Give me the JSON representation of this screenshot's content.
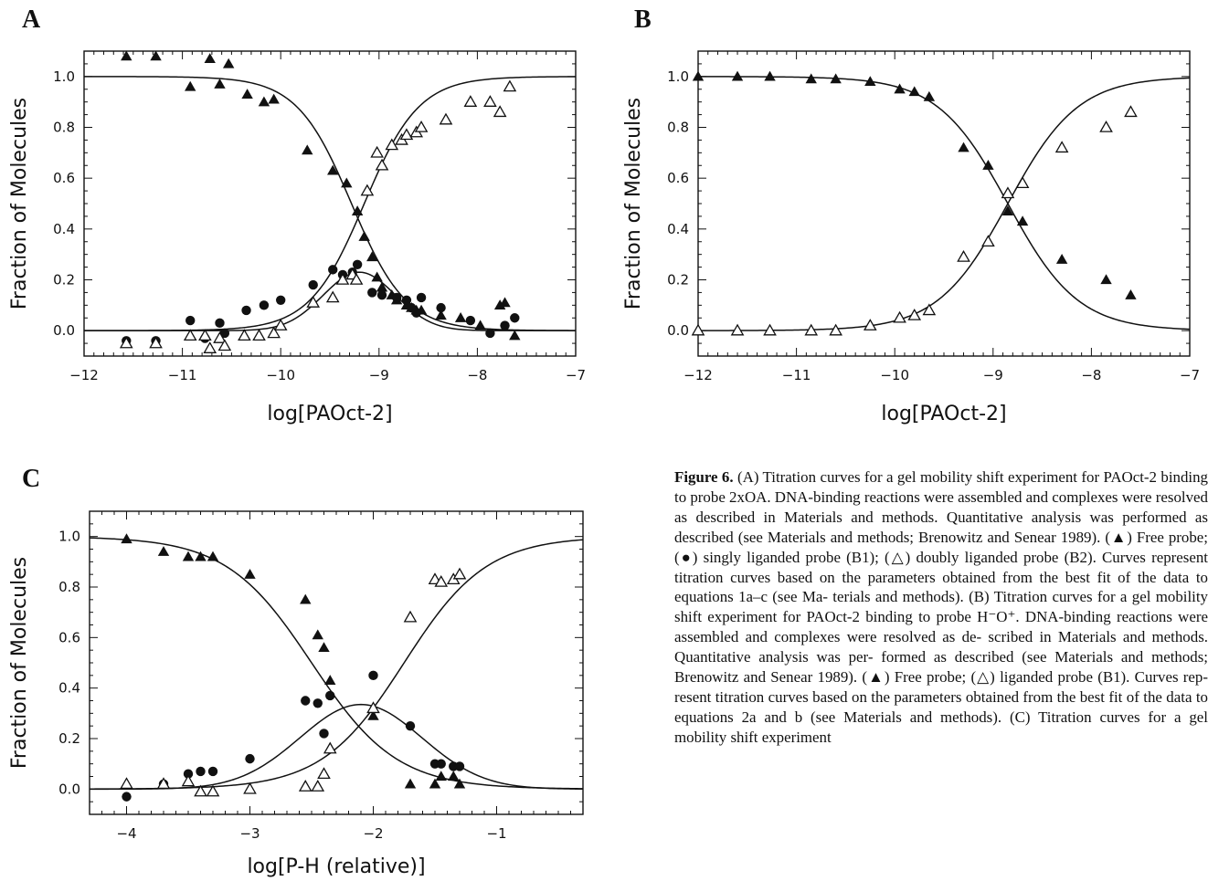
{
  "panels": {
    "a": "A",
    "b": "B",
    "c": "C"
  },
  "chart_data": [
    {
      "type": "scatter",
      "panel": "A",
      "xlabel": "log[PAOct-2]",
      "ylabel": "Fraction of Molecules",
      "xlim": [
        -12,
        -7
      ],
      "ylim": [
        -0.1,
        1.1
      ],
      "xticks": [
        -12,
        -11,
        -10,
        -9,
        -8,
        -7
      ],
      "yticks": [
        0.0,
        0.2,
        0.4,
        0.6,
        0.8,
        1.0
      ],
      "xtick_labels": [
        "−12",
        "−11",
        "−10",
        "−9",
        "−8",
        "−7"
      ],
      "ytick_labels": [
        "0.0",
        "0.2",
        "0.4",
        "0.6",
        "0.8",
        "1.0"
      ],
      "series": [
        {
          "marker": "filled-triangle",
          "x": [
            -11.57,
            -11.27,
            -10.92,
            -10.72,
            -10.62,
            -10.53,
            -10.34,
            -10.17,
            -10.07,
            -9.73,
            -9.47,
            -9.33,
            -9.22,
            -9.15,
            -9.07,
            -9.02,
            -8.97,
            -8.87,
            -8.82,
            -8.72,
            -8.67,
            -8.62,
            -8.57,
            -8.37,
            -8.17,
            -7.97,
            -7.77,
            -7.72,
            -7.62
          ],
          "y": [
            1.08,
            1.08,
            0.96,
            1.07,
            0.97,
            1.05,
            0.93,
            0.9,
            0.91,
            0.71,
            0.63,
            0.58,
            0.47,
            0.37,
            0.29,
            0.21,
            0.17,
            0.14,
            0.12,
            0.1,
            0.09,
            0.08,
            0.08,
            0.06,
            0.05,
            0.02,
            0.1,
            0.11,
            -0.02
          ]
        },
        {
          "marker": "filled-circle",
          "x": [
            -11.57,
            -11.27,
            -10.92,
            -10.77,
            -10.62,
            -10.57,
            -10.35,
            -10.17,
            -10.0,
            -9.67,
            -9.47,
            -9.37,
            -9.27,
            -9.22,
            -9.07,
            -8.97,
            -8.82,
            -8.72,
            -8.67,
            -8.62,
            -8.57,
            -8.37,
            -8.07,
            -7.87,
            -7.72,
            -7.62
          ],
          "y": [
            -0.04,
            -0.04,
            0.04,
            -0.03,
            0.03,
            -0.01,
            0.08,
            0.1,
            0.12,
            0.18,
            0.24,
            0.22,
            0.23,
            0.26,
            0.15,
            0.14,
            0.13,
            0.12,
            0.09,
            0.07,
            0.13,
            0.09,
            0.04,
            -0.01,
            0.02,
            0.05
          ]
        },
        {
          "marker": "open-triangle",
          "x": [
            -11.57,
            -11.27,
            -10.92,
            -10.77,
            -10.72,
            -10.62,
            -10.57,
            -10.37,
            -10.22,
            -10.07,
            -10.0,
            -9.67,
            -9.47,
            -9.37,
            -9.27,
            -9.23,
            -9.12,
            -9.02,
            -8.97,
            -8.87,
            -8.77,
            -8.72,
            -8.62,
            -8.57,
            -8.32,
            -8.07,
            -7.87,
            -7.77,
            -7.67
          ],
          "y": [
            -0.05,
            -0.05,
            -0.02,
            -0.02,
            -0.07,
            -0.03,
            -0.06,
            -0.02,
            -0.02,
            -0.01,
            0.02,
            0.11,
            0.13,
            0.2,
            0.22,
            0.2,
            0.55,
            0.7,
            0.65,
            0.73,
            0.75,
            0.77,
            0.78,
            0.8,
            0.83,
            0.9,
            0.9,
            0.86,
            0.96
          ]
        }
      ]
    },
    {
      "type": "scatter",
      "panel": "B",
      "xlabel": "log[PAOct-2]",
      "ylabel": "Fraction of Molecules",
      "xlim": [
        -12,
        -7
      ],
      "ylim": [
        -0.1,
        1.1
      ],
      "xticks": [
        -12,
        -11,
        -10,
        -9,
        -8,
        -7
      ],
      "yticks": [
        0.0,
        0.2,
        0.4,
        0.6,
        0.8,
        1.0
      ],
      "xtick_labels": [
        "−12",
        "−11",
        "−10",
        "−9",
        "−8",
        "−7"
      ],
      "ytick_labels": [
        "0.0",
        "0.2",
        "0.4",
        "0.6",
        "0.8",
        "1.0"
      ],
      "series": [
        {
          "marker": "filled-triangle",
          "x": [
            -12.0,
            -11.6,
            -11.27,
            -10.85,
            -10.6,
            -10.25,
            -9.95,
            -9.8,
            -9.65,
            -9.3,
            -9.05,
            -8.85,
            -8.7,
            -8.3,
            -7.85,
            -7.6
          ],
          "y": [
            1.0,
            1.0,
            1.0,
            0.99,
            0.99,
            0.98,
            0.95,
            0.94,
            0.92,
            0.72,
            0.65,
            0.47,
            0.43,
            0.28,
            0.2,
            0.14
          ]
        },
        {
          "marker": "open-triangle",
          "x": [
            -12.0,
            -11.6,
            -11.27,
            -10.85,
            -10.6,
            -10.25,
            -9.95,
            -9.8,
            -9.65,
            -9.3,
            -9.05,
            -8.85,
            -8.7,
            -8.3,
            -7.85,
            -7.6
          ],
          "y": [
            0.0,
            0.0,
            0.0,
            0.0,
            0.0,
            0.02,
            0.05,
            0.06,
            0.08,
            0.29,
            0.35,
            0.54,
            0.58,
            0.72,
            0.8,
            0.86
          ]
        }
      ]
    },
    {
      "type": "scatter",
      "panel": "C",
      "xlabel": "log[P-H (relative)]",
      "ylabel": "Fraction of Molecules",
      "xlim": [
        -4.3,
        -0.3
      ],
      "ylim": [
        -0.1,
        1.1
      ],
      "xticks": [
        -4,
        -3,
        -2,
        -1
      ],
      "yticks": [
        0.0,
        0.2,
        0.4,
        0.6,
        0.8,
        1.0
      ],
      "xtick_labels": [
        "−4",
        "−3",
        "−2",
        "−1"
      ],
      "ytick_labels": [
        "0.0",
        "0.2",
        "0.4",
        "0.6",
        "0.8",
        "1.0"
      ],
      "series": [
        {
          "marker": "filled-triangle",
          "x": [
            -4.0,
            -3.7,
            -3.5,
            -3.4,
            -3.3,
            -3.0,
            -2.55,
            -2.45,
            -2.4,
            -2.35,
            -2.0,
            -1.7,
            -1.5,
            -1.45,
            -1.35,
            -1.3
          ],
          "y": [
            0.99,
            0.94,
            0.92,
            0.92,
            0.92,
            0.85,
            0.75,
            0.61,
            0.56,
            0.43,
            0.29,
            0.02,
            0.02,
            0.05,
            0.05,
            0.02
          ]
        },
        {
          "marker": "filled-circle",
          "x": [
            -4.0,
            -3.7,
            -3.5,
            -3.4,
            -3.3,
            -3.0,
            -2.55,
            -2.45,
            -2.4,
            -2.35,
            -2.0,
            -1.7,
            -1.5,
            -1.45,
            -1.35,
            -1.3
          ],
          "y": [
            -0.03,
            0.02,
            0.06,
            0.07,
            0.07,
            0.12,
            0.35,
            0.34,
            0.22,
            0.37,
            0.45,
            0.25,
            0.1,
            0.1,
            0.09,
            0.09
          ]
        },
        {
          "marker": "open-triangle",
          "x": [
            -4.0,
            -3.7,
            -3.5,
            -3.4,
            -3.3,
            -3.0,
            -2.55,
            -2.45,
            -2.4,
            -2.35,
            -2.0,
            -1.7,
            -1.5,
            -1.45,
            -1.35,
            -1.3
          ],
          "y": [
            0.02,
            0.02,
            0.03,
            -0.01,
            -0.01,
            0.0,
            0.01,
            0.01,
            0.06,
            0.16,
            0.32,
            0.68,
            0.83,
            0.82,
            0.83,
            0.85
          ]
        }
      ]
    }
  ],
  "caption": {
    "label": "Figure 6.",
    "lines": [
      "(A) Titration curves for a gel mobility shift experiment",
      "for PAOct-2 binding to probe 2xOA. DNA-binding reactions were",
      "assembled and complexes were resolved as described in Materials",
      "and methods. Quantitative analysis was performed as described",
      "(see Materials and methods; Brenowitz and Senear 1989). (▲) Free",
      "probe; (●) singly liganded probe (B1); (△) doubly liganded probe",
      "(B2). Curves represent titration curves based on the parameters",
      "obtained from the best fit of the data to equations 1a–c (see Ma-",
      "terials and methods). (B) Titration curves for a gel mobility shift",
      "experiment for PAOct-2 binding to probe H⁻O⁺. DNA-binding",
      "reactions were assembled and complexes were resolved as de-",
      "scribed in Materials and methods. Quantitative analysis was per-",
      "formed as described (see Materials and methods; Brenowitz and",
      "Senear 1989). (▲) Free probe; (△) liganded probe (B1). Curves rep-",
      "resent titration curves based on the parameters obtained from the",
      "best fit of the data to equations 2a and b (see Materials and",
      "methods). (C) Titration curves for a gel mobility shift experiment"
    ]
  }
}
